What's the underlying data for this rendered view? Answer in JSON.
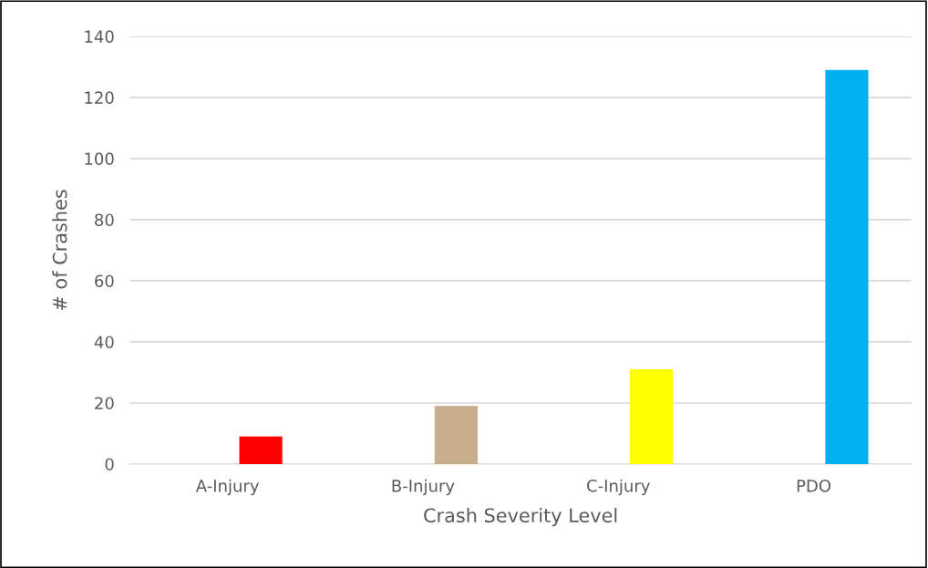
{
  "chart_data": {
    "type": "bar",
    "xlabel": "Crash Severity Level",
    "ylabel": "# of Crashes",
    "categories": [
      "A-Injury",
      "B-Injury",
      "C-Injury",
      "PDO"
    ],
    "values": [
      9,
      19,
      31,
      129
    ],
    "colors": [
      "#ff0000",
      "#c8ad8a",
      "#ffff00",
      "#00b0f0"
    ],
    "ylim": [
      0,
      140
    ],
    "yticks": [
      0,
      20,
      40,
      60,
      80,
      100,
      120,
      140
    ],
    "grid": "y"
  }
}
